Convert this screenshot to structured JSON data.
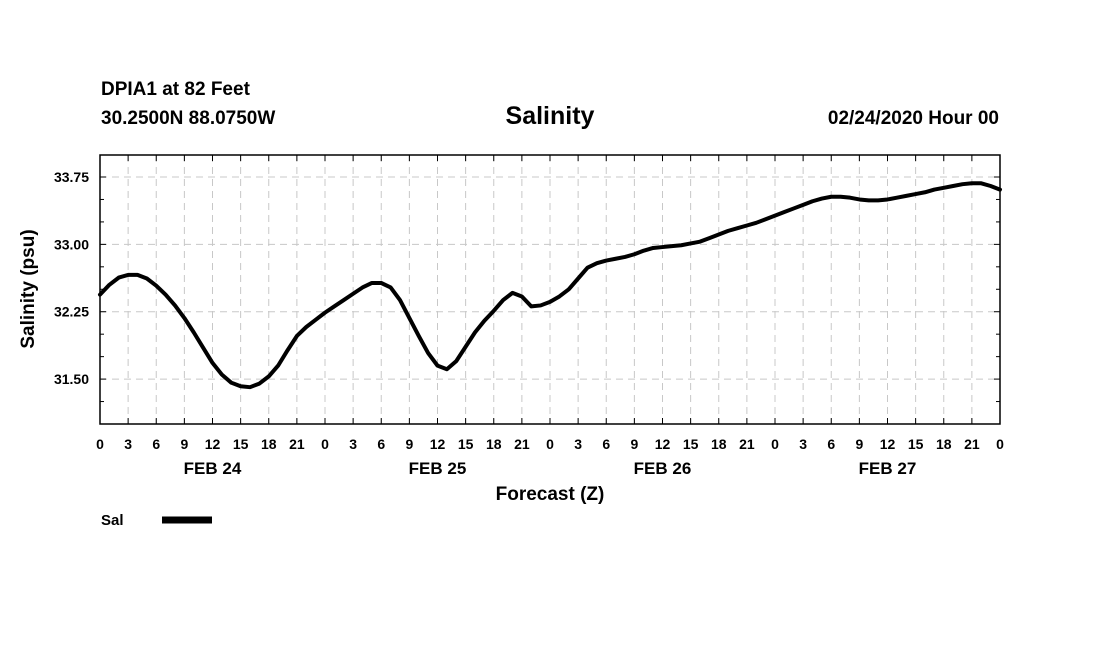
{
  "header": {
    "station": "DPIA1 at 82 Feet",
    "coords": "30.2500N 88.0750W",
    "title": "Salinity",
    "datetime": "02/24/2020 Hour 00"
  },
  "legend": {
    "label": "Sal"
  },
  "chart_data": {
    "type": "line",
    "title": "Salinity",
    "xlabel": "Forecast (Z)",
    "ylabel": "Salinity (psu)",
    "x_unit": "hours from 02/24/2020 00Z",
    "xlim": [
      0,
      96
    ],
    "ylim": [
      31.0,
      33.995
    ],
    "y_ticks": [
      31.5,
      32.25,
      33.0,
      33.75
    ],
    "y_tick_labels": [
      "31.50",
      "32.25",
      "33.00",
      "33.75"
    ],
    "x_tick_labels": [
      "0",
      "3",
      "6",
      "9",
      "12",
      "15",
      "18",
      "21",
      "0",
      "3",
      "6",
      "9",
      "12",
      "15",
      "18",
      "21",
      "0",
      "3",
      "6",
      "9",
      "12",
      "15",
      "18",
      "21",
      "0",
      "3",
      "6",
      "9",
      "12",
      "15",
      "18",
      "21",
      "0"
    ],
    "day_labels": [
      "FEB 24",
      "FEB 25",
      "FEB 26",
      "FEB 27"
    ],
    "grid": true,
    "legend_position": "bottom-left",
    "series": [
      {
        "name": "Sal",
        "x": [
          0,
          1,
          2,
          3,
          4,
          5,
          6,
          7,
          8,
          9,
          10,
          11,
          12,
          13,
          14,
          15,
          16,
          17,
          18,
          19,
          20,
          21,
          22,
          23,
          24,
          25,
          26,
          27,
          28,
          29,
          30,
          31,
          32,
          33,
          34,
          35,
          36,
          37,
          38,
          39,
          40,
          41,
          42,
          43,
          44,
          45,
          46,
          47,
          48,
          49,
          50,
          51,
          52,
          53,
          54,
          55,
          56,
          57,
          58,
          59,
          60,
          61,
          62,
          63,
          64,
          65,
          66,
          67,
          68,
          69,
          70,
          71,
          72,
          73,
          74,
          75,
          76,
          77,
          78,
          79,
          80,
          81,
          82,
          83,
          84,
          85,
          86,
          87,
          88,
          89,
          90,
          91,
          92,
          93,
          94,
          95,
          96
        ],
        "values": [
          32.44,
          32.55,
          32.63,
          32.66,
          32.66,
          32.62,
          32.54,
          32.44,
          32.32,
          32.18,
          32.02,
          31.85,
          31.68,
          31.55,
          31.46,
          31.42,
          31.41,
          31.45,
          31.53,
          31.65,
          31.82,
          31.98,
          32.08,
          32.16,
          32.24,
          32.31,
          32.38,
          32.45,
          32.52,
          32.57,
          32.57,
          32.52,
          32.38,
          32.18,
          31.98,
          31.79,
          31.65,
          31.61,
          31.7,
          31.86,
          32.02,
          32.15,
          32.26,
          32.38,
          32.46,
          32.42,
          32.31,
          32.32,
          32.36,
          32.42,
          32.5,
          32.62,
          32.74,
          32.79,
          32.82,
          32.84,
          32.86,
          32.89,
          32.93,
          32.96,
          32.97,
          32.98,
          32.99,
          33.01,
          33.03,
          33.07,
          33.11,
          33.15,
          33.18,
          33.21,
          33.24,
          33.28,
          33.32,
          33.36,
          33.4,
          33.44,
          33.48,
          33.51,
          33.53,
          33.53,
          33.52,
          33.5,
          33.49,
          33.49,
          33.5,
          33.52,
          33.54,
          33.56,
          33.58,
          33.61,
          33.63,
          33.65,
          33.67,
          33.68,
          33.68,
          33.65,
          33.61
        ]
      }
    ]
  }
}
